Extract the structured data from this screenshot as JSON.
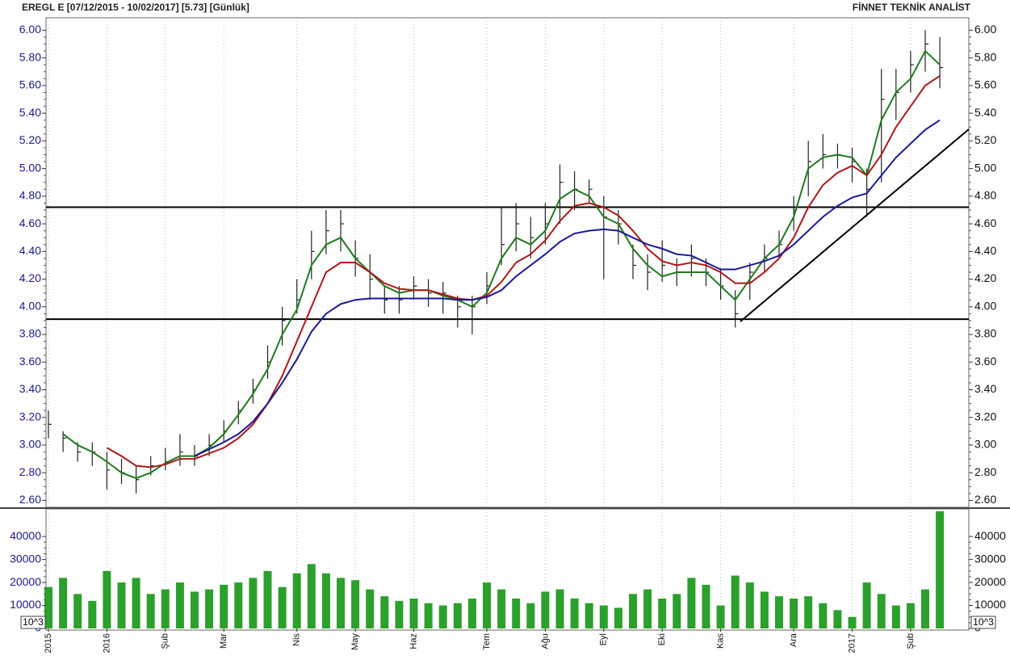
{
  "chart_data": [
    {
      "type": "ohlc",
      "title": "EREGL E  [07/12/2015 - 10/02/2017]  [5.73]  [Günlük]",
      "source": "FİNNET TEKNİK ANALİST",
      "categories": [
        "2015",
        null,
        null,
        null,
        "2016",
        null,
        null,
        null,
        "Şub",
        null,
        null,
        null,
        "Mar",
        null,
        null,
        null,
        null,
        "Nis",
        null,
        null,
        null,
        "May",
        null,
        null,
        null,
        "Haz",
        null,
        null,
        null,
        null,
        "Tem",
        null,
        null,
        null,
        "Ağu",
        null,
        null,
        null,
        "Eyl",
        null,
        null,
        null,
        "Eki",
        null,
        null,
        null,
        "Kas",
        null,
        null,
        null,
        null,
        "Ara",
        null,
        null,
        null,
        "2017",
        null,
        null,
        null,
        "Şub",
        null,
        null
      ],
      "high": [
        3.25,
        3.1,
        3.02,
        3.02,
        2.95,
        2.9,
        2.85,
        2.92,
        2.98,
        3.08,
        3.0,
        3.08,
        3.18,
        3.32,
        3.48,
        3.72,
        4.0,
        4.2,
        4.55,
        4.7,
        4.7,
        4.48,
        4.38,
        4.15,
        4.15,
        4.22,
        4.2,
        4.18,
        4.08,
        4.08,
        4.25,
        4.72,
        4.75,
        4.65,
        4.75,
        5.03,
        4.98,
        4.92,
        4.8,
        4.7,
        4.45,
        4.38,
        4.48,
        4.35,
        4.45,
        4.35,
        4.28,
        4.12,
        4.32,
        4.45,
        4.55,
        4.8,
        5.2,
        5.25,
        5.18,
        5.15,
        5.0,
        5.72,
        5.72,
        5.85,
        6.0,
        5.95
      ],
      "low": [
        3.05,
        2.95,
        2.88,
        2.85,
        2.68,
        2.72,
        2.65,
        2.78,
        2.82,
        2.85,
        2.85,
        2.92,
        3.02,
        3.15,
        3.3,
        3.48,
        3.72,
        3.95,
        4.2,
        4.38,
        4.4,
        4.22,
        4.05,
        3.95,
        3.95,
        4.05,
        4.0,
        3.95,
        3.85,
        3.8,
        4.02,
        4.3,
        4.4,
        4.35,
        4.45,
        4.6,
        4.7,
        4.75,
        4.2,
        4.45,
        4.2,
        4.12,
        4.18,
        4.15,
        4.22,
        4.15,
        4.05,
        3.85,
        4.05,
        4.25,
        4.35,
        4.55,
        4.8,
        5.0,
        5.0,
        4.9,
        4.65,
        4.9,
        5.35,
        5.55,
        5.7,
        5.58
      ],
      "close": [
        3.15,
        3.05,
        2.95,
        2.95,
        2.82,
        2.8,
        2.75,
        2.85,
        2.88,
        2.95,
        2.92,
        3.0,
        3.1,
        3.25,
        3.4,
        3.6,
        3.9,
        4.05,
        4.4,
        4.55,
        4.6,
        4.35,
        4.2,
        4.05,
        4.05,
        4.15,
        4.1,
        4.1,
        4.0,
        4.0,
        4.15,
        4.45,
        4.6,
        4.5,
        4.6,
        4.9,
        4.85,
        4.85,
        4.65,
        4.6,
        4.3,
        4.25,
        4.3,
        4.25,
        4.35,
        4.25,
        4.15,
        3.95,
        4.25,
        4.35,
        4.45,
        4.7,
        5.05,
        5.1,
        5.1,
        5.05,
        4.85,
        5.5,
        5.55,
        5.75,
        5.9,
        5.73
      ],
      "bar_color": "#222222",
      "series": [
        {
          "color": "#1f7a1f",
          "values": [
            null,
            3.08,
            3.0,
            2.95,
            2.88,
            2.8,
            2.76,
            2.8,
            2.87,
            2.92,
            2.92,
            2.98,
            3.08,
            3.22,
            3.37,
            3.55,
            3.8,
            3.98,
            4.3,
            4.45,
            4.5,
            4.35,
            4.25,
            4.15,
            4.1,
            4.12,
            4.12,
            4.08,
            4.05,
            4.0,
            4.1,
            4.35,
            4.5,
            4.45,
            4.55,
            4.78,
            4.85,
            4.8,
            4.65,
            4.6,
            4.42,
            4.3,
            4.22,
            4.25,
            4.25,
            4.25,
            4.15,
            4.05,
            4.2,
            4.35,
            4.45,
            4.65,
            5.0,
            5.08,
            5.1,
            5.08,
            4.95,
            5.35,
            5.55,
            5.65,
            5.85,
            5.75
          ]
        },
        {
          "color": "#b01818",
          "values": [
            null,
            null,
            null,
            null,
            2.98,
            2.92,
            2.85,
            2.84,
            2.86,
            2.9,
            2.9,
            2.94,
            2.98,
            3.05,
            3.15,
            3.3,
            3.5,
            3.75,
            4.0,
            4.25,
            4.32,
            4.32,
            4.25,
            4.17,
            4.13,
            4.12,
            4.12,
            4.09,
            4.06,
            4.05,
            4.08,
            4.18,
            4.32,
            4.38,
            4.48,
            4.62,
            4.73,
            4.75,
            4.72,
            4.66,
            4.55,
            4.42,
            4.33,
            4.3,
            4.32,
            4.3,
            4.25,
            4.17,
            4.17,
            4.25,
            4.35,
            4.5,
            4.72,
            4.88,
            4.97,
            5.02,
            4.95,
            5.1,
            5.3,
            5.45,
            5.6,
            5.67
          ]
        },
        {
          "color": "#1a1a9a",
          "values": [
            null,
            null,
            null,
            null,
            null,
            null,
            null,
            null,
            null,
            null,
            2.92,
            2.97,
            3.02,
            3.08,
            3.17,
            3.3,
            3.45,
            3.62,
            3.82,
            3.95,
            4.02,
            4.05,
            4.06,
            4.06,
            4.06,
            4.06,
            4.06,
            4.06,
            4.05,
            4.05,
            4.07,
            4.12,
            4.22,
            4.3,
            4.38,
            4.47,
            4.53,
            4.55,
            4.56,
            4.55,
            4.5,
            4.45,
            4.42,
            4.38,
            4.37,
            4.32,
            4.27,
            4.27,
            4.3,
            4.33,
            4.37,
            4.45,
            4.55,
            4.65,
            4.73,
            4.79,
            4.82,
            4.95,
            5.08,
            5.18,
            5.28,
            5.35
          ]
        }
      ],
      "levels": [
        4.72,
        3.91
      ],
      "ylim": [
        2.55,
        6.09
      ],
      "yticks": [
        {
          "value": 2.6,
          "label": "2.60"
        },
        {
          "value": 2.8,
          "label": "2.80"
        },
        {
          "value": 3,
          "label": "3.00"
        },
        {
          "value": 3.2,
          "label": "3.20"
        },
        {
          "value": 3.4,
          "label": "3.40"
        },
        {
          "value": 3.6,
          "label": "3.60"
        },
        {
          "value": 3.8,
          "label": "3.80"
        },
        {
          "value": 4,
          "label": "4.00"
        },
        {
          "value": 4.2,
          "label": "4.20"
        },
        {
          "value": 4.4,
          "label": "4.40"
        },
        {
          "value": 4.6,
          "label": "4.60"
        },
        {
          "value": 4.8,
          "label": "4.80"
        },
        {
          "value": 5,
          "label": "5.00"
        },
        {
          "value": 5.2,
          "label": "5.20"
        },
        {
          "value": 5.4,
          "label": "5.40"
        },
        {
          "value": 5.6,
          "label": "5.60"
        },
        {
          "value": 5.8,
          "label": "5.80"
        },
        {
          "value": 6,
          "label": "6.00"
        }
      ]
    },
    {
      "type": "bar",
      "unit_label": "10^3",
      "color": "#2ca02c",
      "values": [
        18000,
        22000,
        15000,
        12000,
        25000,
        20000,
        22000,
        15000,
        17000,
        20000,
        16000,
        17000,
        19000,
        20000,
        22000,
        25000,
        18000,
        24000,
        28000,
        24000,
        22000,
        21000,
        17000,
        14000,
        12000,
        13000,
        11000,
        10000,
        11000,
        13000,
        20000,
        17000,
        13000,
        11000,
        16000,
        17000,
        13000,
        11000,
        10000,
        9000,
        15000,
        17000,
        13000,
        15000,
        22000,
        19000,
        10000,
        23000,
        20000,
        16000,
        14000,
        13000,
        14000,
        11000,
        8000,
        5000,
        20000,
        15000,
        10000,
        11000,
        17000,
        51000
      ],
      "ylim": [
        0,
        52000
      ],
      "yticks": [
        0,
        10000,
        20000,
        30000,
        40000
      ]
    }
  ]
}
